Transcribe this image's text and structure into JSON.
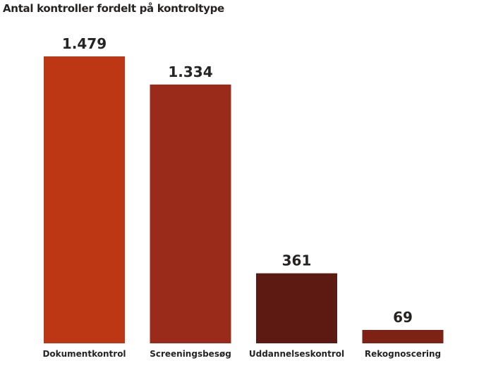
{
  "chart_data": {
    "type": "bar",
    "title": "Antal kontroller fordelt på kontroltype",
    "categories": [
      "Dokumentkontrol",
      "Screeningsbesøg",
      "Uddannelseskontrol",
      "Rekognoscering"
    ],
    "values": [
      1479,
      1334,
      361,
      69
    ],
    "value_labels": [
      "1.479",
      "1.334",
      "361",
      "69"
    ],
    "colors": [
      "#BE3714",
      "#9A2B1B",
      "#5C1A12",
      "#7E2215"
    ],
    "xlabel": "",
    "ylabel": "",
    "ylim": [
      0,
      1479
    ],
    "grid": false
  }
}
